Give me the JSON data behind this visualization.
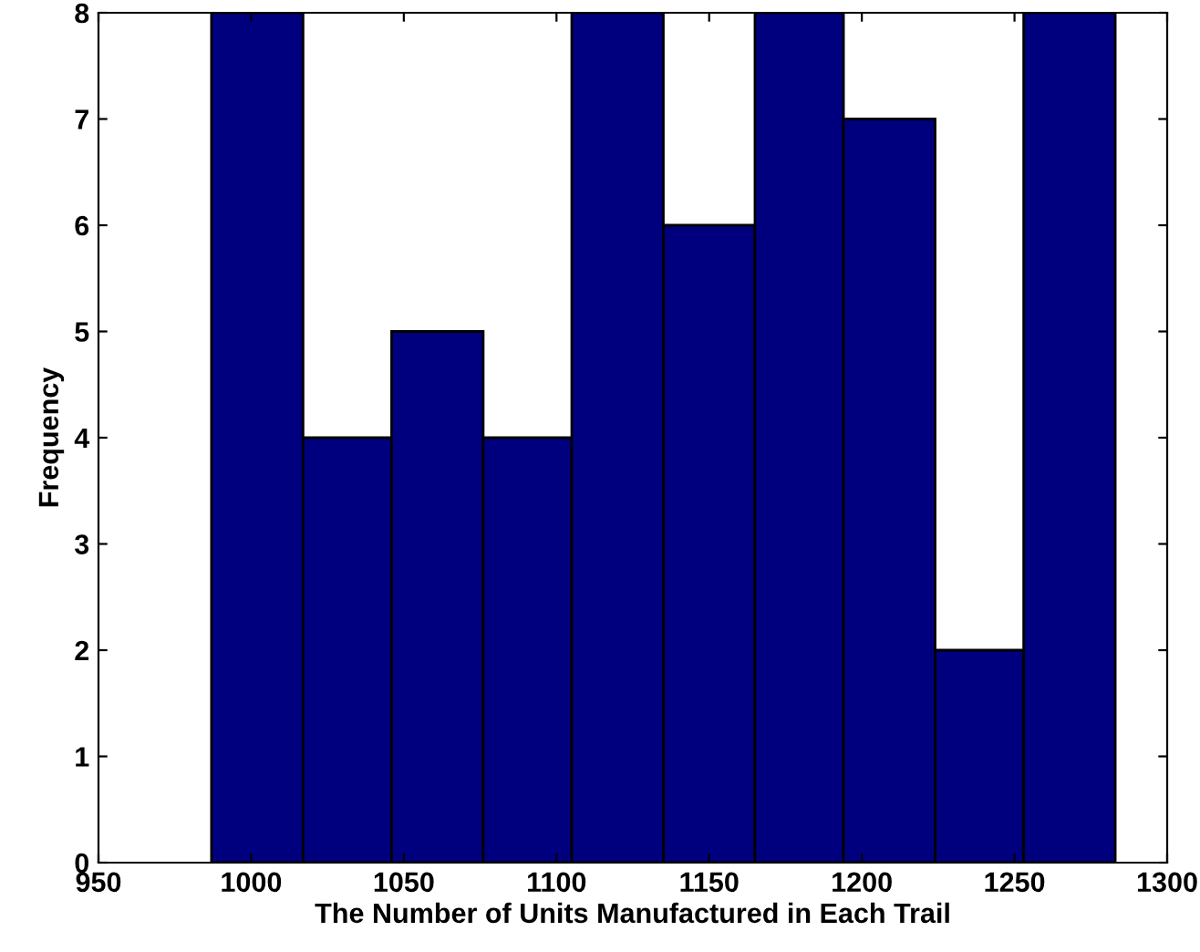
{
  "chart_data": {
    "type": "histogram",
    "xlabel": "The Number of Units Manufactured in Each Trail",
    "ylabel": "Frequency",
    "bins": [
      987,
      1017,
      1046,
      1076,
      1105,
      1135,
      1165,
      1194,
      1224,
      1253,
      1283
    ],
    "values": [
      8,
      4,
      5,
      4,
      8,
      6,
      8,
      7,
      2,
      8
    ],
    "color": "#00007f",
    "xlim": [
      950,
      1300
    ],
    "xticks": [
      950,
      1000,
      1050,
      1100,
      1150,
      1200,
      1250,
      1300
    ],
    "ylim": [
      0,
      8
    ],
    "yticks": [
      0,
      1,
      2,
      3,
      4,
      5,
      6,
      7,
      8
    ],
    "grid": false
  }
}
